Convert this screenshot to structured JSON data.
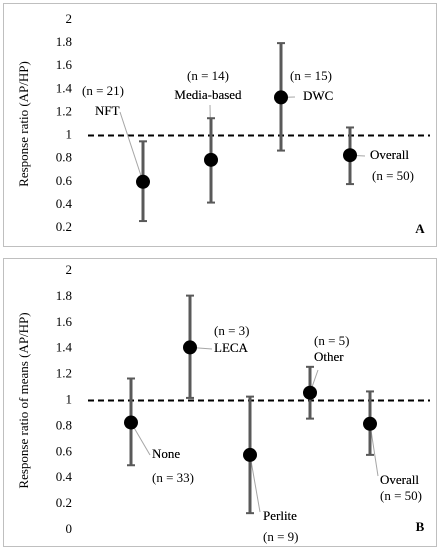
{
  "chart_data": [
    {
      "type": "errorbar",
      "y_label": "Response ratio (AP/HP)",
      "panel": "A",
      "categories": [
        "NFT",
        "Media-based",
        "DWC",
        "Overall"
      ],
      "n_labels": [
        "(n = 21)",
        "(n = 14)",
        "(n = 15)",
        "(n = 50)"
      ],
      "values": [
        0.6,
        0.79,
        1.33,
        0.83
      ],
      "lower": [
        0.26,
        0.42,
        0.87,
        0.58
      ],
      "upper": [
        0.95,
        1.15,
        1.8,
        1.07
      ],
      "reference_line": 1,
      "color": "#000000",
      "error_color": "#595959",
      "ylim": [
        0.2,
        2
      ],
      "yticks": [
        0.2,
        0.4,
        0.6,
        0.8,
        1,
        1.2,
        1.4,
        1.6,
        1.8,
        2
      ]
    },
    {
      "type": "errorbar",
      "y_label": "Response ratio of means (AP/HP)",
      "panel": "B",
      "categories": [
        "None",
        "LECA",
        "Perlite",
        "Other",
        "Overall"
      ],
      "n_labels": [
        "(n = 33)",
        "(n = 3)",
        "(n = 9)",
        "(n = 5)",
        "(n = 50)"
      ],
      "values": [
        0.83,
        1.41,
        0.58,
        1.06,
        0.82
      ],
      "lower": [
        0.5,
        1.02,
        0.13,
        0.86,
        0.58
      ],
      "upper": [
        1.17,
        1.81,
        1.03,
        1.26,
        1.07
      ],
      "reference_line": 1,
      "color": "#000000",
      "error_color": "#595959",
      "ylim": [
        0,
        2
      ],
      "yticks": [
        0,
        0.2,
        0.4,
        0.6,
        0.8,
        1,
        1.2,
        1.4,
        1.6,
        1.8,
        2
      ]
    }
  ]
}
